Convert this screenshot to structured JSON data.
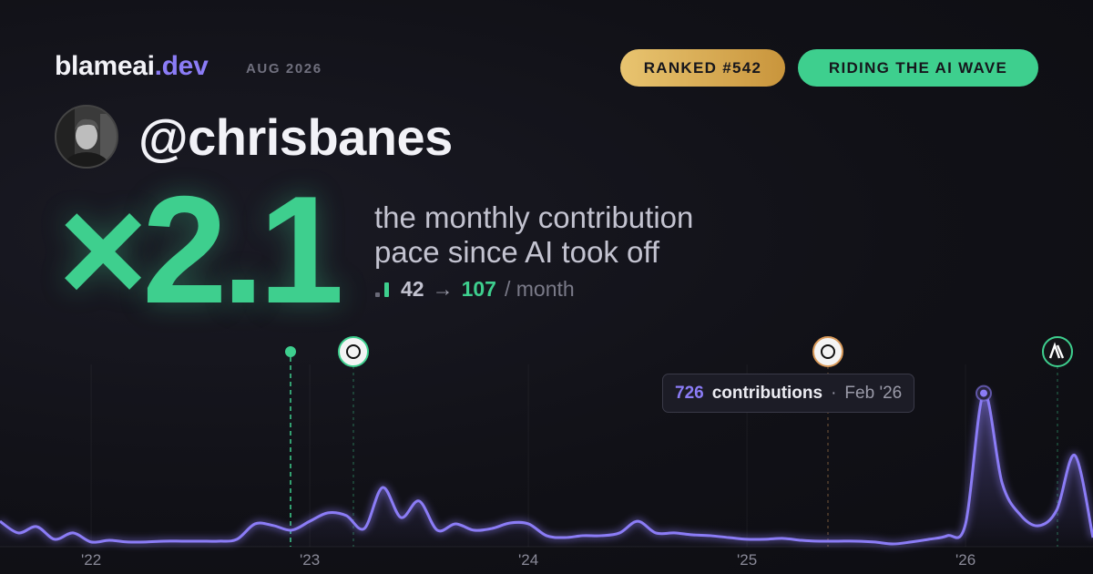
{
  "brand": {
    "name": "blameai",
    "tld": ".dev",
    "period": "AUG 2026"
  },
  "badges": [
    "RANKED #542",
    "RIDING THE AI WAVE"
  ],
  "user": {
    "handle": "@chrisbanes"
  },
  "headline": {
    "multiplier": "×2.1",
    "caption": [
      "the monthly contribution",
      "pace since AI took off"
    ]
  },
  "pace": {
    "before": 42,
    "arrow": "→",
    "after": 107,
    "unit": "/ month"
  },
  "tooltip": {
    "unit": "contributions",
    "separator": "·",
    "date": "Feb '26"
  },
  "chart": {
    "type": "line",
    "color": "#8b7cf6",
    "x": [
      2021.583,
      2021.667,
      2021.75,
      2021.833,
      2021.917,
      2022,
      2022.083,
      2022.167,
      2022.25,
      2022.333,
      2022.417,
      2022.5,
      2022.583,
      2022.667,
      2022.75,
      2022.833,
      2022.917,
      2023,
      2023.083,
      2023.167,
      2023.25,
      2023.333,
      2023.417,
      2023.5,
      2023.583,
      2023.667,
      2023.75,
      2023.833,
      2023.917,
      2024,
      2024.083,
      2024.167,
      2024.25,
      2024.333,
      2024.417,
      2024.5,
      2024.583,
      2024.667,
      2024.75,
      2024.833,
      2024.917,
      2025,
      2025.083,
      2025.167,
      2025.25,
      2025.333,
      2025.417,
      2025.5,
      2025.583,
      2025.667,
      2025.75,
      2025.833,
      2025.917,
      2026,
      2026.083,
      2026.167,
      2026.25,
      2026.333,
      2026.417,
      2026.5,
      2026.583
    ],
    "values": [
      120,
      65,
      95,
      35,
      65,
      22,
      30,
      22,
      22,
      26,
      26,
      26,
      26,
      35,
      108,
      100,
      78,
      120,
      160,
      147,
      86,
      280,
      138,
      216,
      78,
      108,
      78,
      86,
      112,
      108,
      52,
      43,
      52,
      52,
      65,
      120,
      65,
      65,
      56,
      52,
      43,
      35,
      35,
      39,
      30,
      26,
      26,
      26,
      22,
      13,
      22,
      35,
      52,
      108,
      726,
      302,
      151,
      99,
      173,
      432,
      43
    ],
    "xlim": [
      2021.583,
      2026.583
    ],
    "ylim": [
      0,
      750
    ],
    "xticks": [
      {
        "value": 2022,
        "label": "'22"
      },
      {
        "value": 2023,
        "label": "'23"
      },
      {
        "value": 2024,
        "label": "'24"
      },
      {
        "value": 2025,
        "label": "'25"
      },
      {
        "value": 2026,
        "label": "'26"
      }
    ],
    "grid": true,
    "highlight": 54
  }
}
